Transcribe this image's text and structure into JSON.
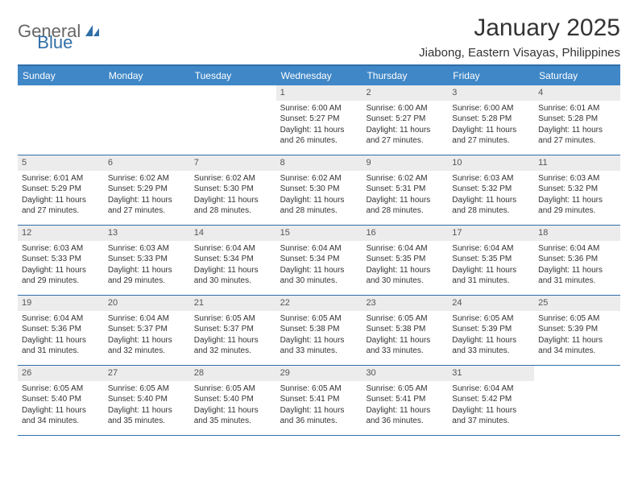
{
  "brand": {
    "text_gray": "General",
    "text_blue": "Blue",
    "icon_color": "#2f6fa8"
  },
  "title": "January 2025",
  "location": "Jiabong, Eastern Visayas, Philippines",
  "colors": {
    "header_accent": "#2f6fa8",
    "header_bg": "#3f87c7",
    "header_text": "#ffffff",
    "daynum_bg": "#ececec",
    "text": "#333333",
    "logo_gray": "#666666"
  },
  "day_headers": [
    "Sunday",
    "Monday",
    "Tuesday",
    "Wednesday",
    "Thursday",
    "Friday",
    "Saturday"
  ],
  "layout": {
    "first_weekday_index": 3,
    "num_days": 31,
    "cell_font_size": 10,
    "header_font_size": 12
  },
  "days": {
    "1": {
      "sunrise": "6:00 AM",
      "sunset": "5:27 PM",
      "daylight": "11 hours and 26 minutes."
    },
    "2": {
      "sunrise": "6:00 AM",
      "sunset": "5:27 PM",
      "daylight": "11 hours and 27 minutes."
    },
    "3": {
      "sunrise": "6:00 AM",
      "sunset": "5:28 PM",
      "daylight": "11 hours and 27 minutes."
    },
    "4": {
      "sunrise": "6:01 AM",
      "sunset": "5:28 PM",
      "daylight": "11 hours and 27 minutes."
    },
    "5": {
      "sunrise": "6:01 AM",
      "sunset": "5:29 PM",
      "daylight": "11 hours and 27 minutes."
    },
    "6": {
      "sunrise": "6:02 AM",
      "sunset": "5:29 PM",
      "daylight": "11 hours and 27 minutes."
    },
    "7": {
      "sunrise": "6:02 AM",
      "sunset": "5:30 PM",
      "daylight": "11 hours and 28 minutes."
    },
    "8": {
      "sunrise": "6:02 AM",
      "sunset": "5:30 PM",
      "daylight": "11 hours and 28 minutes."
    },
    "9": {
      "sunrise": "6:02 AM",
      "sunset": "5:31 PM",
      "daylight": "11 hours and 28 minutes."
    },
    "10": {
      "sunrise": "6:03 AM",
      "sunset": "5:32 PM",
      "daylight": "11 hours and 28 minutes."
    },
    "11": {
      "sunrise": "6:03 AM",
      "sunset": "5:32 PM",
      "daylight": "11 hours and 29 minutes."
    },
    "12": {
      "sunrise": "6:03 AM",
      "sunset": "5:33 PM",
      "daylight": "11 hours and 29 minutes."
    },
    "13": {
      "sunrise": "6:03 AM",
      "sunset": "5:33 PM",
      "daylight": "11 hours and 29 minutes."
    },
    "14": {
      "sunrise": "6:04 AM",
      "sunset": "5:34 PM",
      "daylight": "11 hours and 30 minutes."
    },
    "15": {
      "sunrise": "6:04 AM",
      "sunset": "5:34 PM",
      "daylight": "11 hours and 30 minutes."
    },
    "16": {
      "sunrise": "6:04 AM",
      "sunset": "5:35 PM",
      "daylight": "11 hours and 30 minutes."
    },
    "17": {
      "sunrise": "6:04 AM",
      "sunset": "5:35 PM",
      "daylight": "11 hours and 31 minutes."
    },
    "18": {
      "sunrise": "6:04 AM",
      "sunset": "5:36 PM",
      "daylight": "11 hours and 31 minutes."
    },
    "19": {
      "sunrise": "6:04 AM",
      "sunset": "5:36 PM",
      "daylight": "11 hours and 31 minutes."
    },
    "20": {
      "sunrise": "6:04 AM",
      "sunset": "5:37 PM",
      "daylight": "11 hours and 32 minutes."
    },
    "21": {
      "sunrise": "6:05 AM",
      "sunset": "5:37 PM",
      "daylight": "11 hours and 32 minutes."
    },
    "22": {
      "sunrise": "6:05 AM",
      "sunset": "5:38 PM",
      "daylight": "11 hours and 33 minutes."
    },
    "23": {
      "sunrise": "6:05 AM",
      "sunset": "5:38 PM",
      "daylight": "11 hours and 33 minutes."
    },
    "24": {
      "sunrise": "6:05 AM",
      "sunset": "5:39 PM",
      "daylight": "11 hours and 33 minutes."
    },
    "25": {
      "sunrise": "6:05 AM",
      "sunset": "5:39 PM",
      "daylight": "11 hours and 34 minutes."
    },
    "26": {
      "sunrise": "6:05 AM",
      "sunset": "5:40 PM",
      "daylight": "11 hours and 34 minutes."
    },
    "27": {
      "sunrise": "6:05 AM",
      "sunset": "5:40 PM",
      "daylight": "11 hours and 35 minutes."
    },
    "28": {
      "sunrise": "6:05 AM",
      "sunset": "5:40 PM",
      "daylight": "11 hours and 35 minutes."
    },
    "29": {
      "sunrise": "6:05 AM",
      "sunset": "5:41 PM",
      "daylight": "11 hours and 36 minutes."
    },
    "30": {
      "sunrise": "6:05 AM",
      "sunset": "5:41 PM",
      "daylight": "11 hours and 36 minutes."
    },
    "31": {
      "sunrise": "6:04 AM",
      "sunset": "5:42 PM",
      "daylight": "11 hours and 37 minutes."
    }
  },
  "labels": {
    "sunrise_prefix": "Sunrise: ",
    "sunset_prefix": "Sunset: ",
    "daylight_prefix": "Daylight: "
  }
}
